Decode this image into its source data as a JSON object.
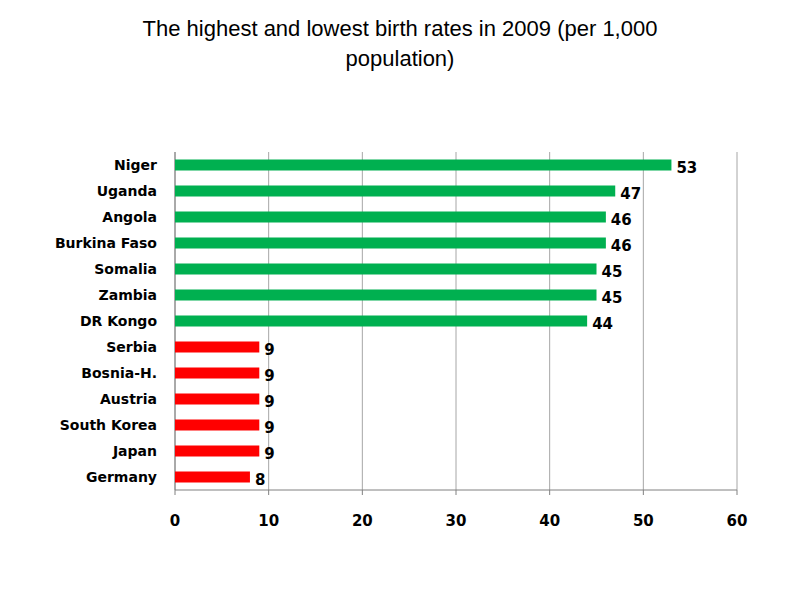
{
  "chart_data": {
    "type": "bar",
    "title": "The highest and lowest birth rates in 2009 (per 1,000 population)",
    "orientation": "horizontal",
    "categories": [
      "Niger",
      "Uganda",
      "Angola",
      "Burkina Faso",
      "Somalia",
      "Zambia",
      "DR Kongo",
      "Serbia",
      "Bosnia-H.",
      "Austria",
      "South Korea",
      "Japan",
      "Germany"
    ],
    "values": [
      53,
      47,
      46,
      46,
      45,
      45,
      44,
      9,
      9,
      9,
      9,
      9,
      8
    ],
    "colors": [
      "#00b050",
      "#00b050",
      "#00b050",
      "#00b050",
      "#00b050",
      "#00b050",
      "#00b050",
      "#ff0000",
      "#ff0000",
      "#ff0000",
      "#ff0000",
      "#ff0000",
      "#ff0000"
    ],
    "xlim": [
      0,
      60
    ],
    "xticks": [
      0,
      10,
      20,
      30,
      40,
      50,
      60
    ],
    "grid": true,
    "data_labels": true
  }
}
